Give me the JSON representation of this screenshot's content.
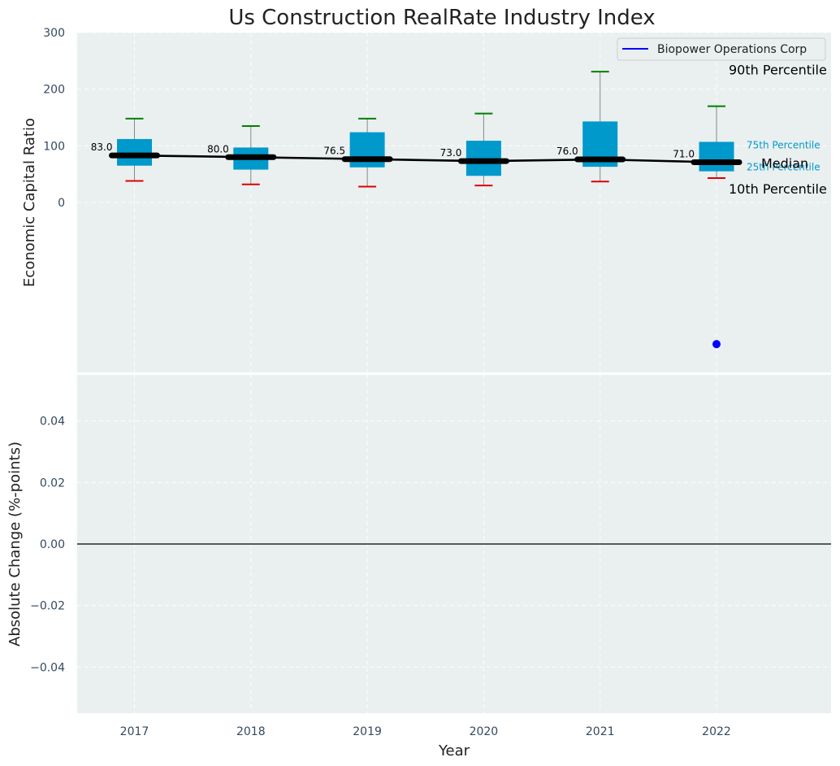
{
  "chart_data": {
    "type": "box",
    "title": "Us Construction RealRate Industry Index",
    "xlabel": "Year",
    "colors": {
      "box": "#0099cc",
      "median_line": "#000000",
      "whisker_high": "#008000",
      "whisker_low": "#dd0000",
      "company": "#0000ff",
      "panel_bg": "#eaeff0",
      "percentile_label": "#0099cc"
    },
    "categories": [
      "2017",
      "2018",
      "2019",
      "2020",
      "2021",
      "2022"
    ],
    "top_panel": {
      "ylabel": "Economic Capital Ratio",
      "ylim": [
        -300,
        300
      ],
      "yticks": [
        0,
        100,
        200,
        300
      ],
      "grid": true,
      "p10": [
        38,
        32,
        28,
        30,
        37,
        43
      ],
      "p25": [
        65,
        58,
        62,
        47,
        63,
        55
      ],
      "median": [
        83.0,
        80.0,
        76.5,
        73.0,
        76.0,
        71.0
      ],
      "median_labels": [
        "83.0",
        "80.0",
        "76.5",
        "73.0",
        "76.0",
        "71.0"
      ],
      "p75": [
        112,
        97,
        124,
        109,
        143,
        107
      ],
      "p90": [
        148,
        135,
        148,
        157,
        231,
        170
      ],
      "company_points": [
        {
          "x": "2022",
          "y": -250
        }
      ],
      "percentile_annotations": {
        "p90": "90th Percentile",
        "p75": "75th Percentile",
        "median": "Median",
        "p25": "25th Percentile",
        "p10": "10th Percentile"
      },
      "legend": {
        "position": "top-right",
        "entries": [
          {
            "name": "Biopower Operations Corp",
            "color": "#0000ff"
          }
        ]
      }
    },
    "bottom_panel": {
      "ylabel": "Absolute Change (%-points)",
      "ylim": [
        -0.055,
        0.055
      ],
      "yticks": [
        0.04,
        0.02,
        0.0,
        -0.02,
        -0.04
      ],
      "ytick_labels": [
        "0.04",
        "0.02",
        "0.00",
        "−0.02",
        "−0.04"
      ],
      "zero_line": true,
      "grid": true,
      "series": []
    }
  }
}
